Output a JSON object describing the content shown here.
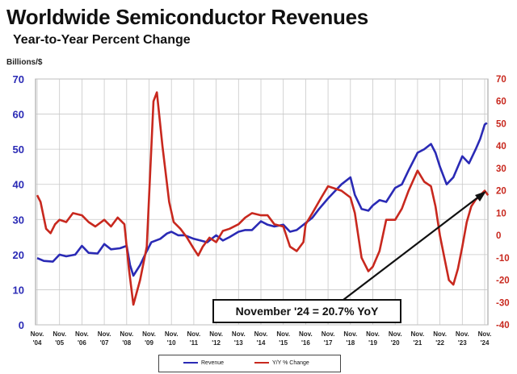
{
  "title": "Worldwide Semiconductor Revenues",
  "subtitle": "Year-to-Year Percent Change",
  "ylabel": "Billions/$",
  "annotation": "November '24 = 20.7% YoY",
  "chart_data": {
    "type": "line",
    "categories": [
      "Nov. '04",
      "Nov. '05",
      "Nov. '06",
      "Nov. '07",
      "Nov. '08",
      "Nov. '09",
      "Nov. '10",
      "Nov. '11",
      "Nov. '12",
      "Nov. '13",
      "Nov. '14",
      "Nov. '15",
      "Nov. '16",
      "Nov. '17",
      "Nov. '18",
      "Nov. '19",
      "Nov. '20",
      "Nov. '21",
      "Nov. '22",
      "Nov. '23",
      "Nov. '24"
    ],
    "y_left_ticks": [
      0,
      10,
      20,
      30,
      40,
      50,
      60,
      70
    ],
    "y_left_lim": [
      0,
      70
    ],
    "y_right_ticks": [
      -40,
      -30,
      -20,
      -10,
      0,
      10,
      20,
      30,
      40,
      50,
      60,
      70
    ],
    "y_right_lim": [
      -40,
      70
    ],
    "grid": true,
    "legend_position": "bottom",
    "series": [
      {
        "name": "Revenue",
        "axis": "left",
        "color": "#2a2ab5",
        "points": [
          [
            0,
            19
          ],
          [
            0.3,
            18.2
          ],
          [
            0.7,
            18
          ],
          [
            1.0,
            20
          ],
          [
            1.3,
            19.5
          ],
          [
            1.7,
            20
          ],
          [
            2.0,
            22.5
          ],
          [
            2.3,
            20.5
          ],
          [
            2.7,
            20.3
          ],
          [
            3.0,
            23
          ],
          [
            3.3,
            21.5
          ],
          [
            3.7,
            21.8
          ],
          [
            4.0,
            22.5
          ],
          [
            4.15,
            17
          ],
          [
            4.3,
            14
          ],
          [
            4.6,
            17
          ],
          [
            4.9,
            21
          ],
          [
            5.1,
            23.5
          ],
          [
            5.5,
            24.5
          ],
          [
            5.8,
            26
          ],
          [
            6.0,
            26.5
          ],
          [
            6.3,
            25.5
          ],
          [
            6.6,
            25.5
          ],
          [
            7.0,
            24.5
          ],
          [
            7.3,
            24
          ],
          [
            7.6,
            23.5
          ],
          [
            8.0,
            25.5
          ],
          [
            8.3,
            24
          ],
          [
            8.6,
            25
          ],
          [
            9.0,
            26.5
          ],
          [
            9.3,
            27
          ],
          [
            9.6,
            27
          ],
          [
            10.0,
            29.5
          ],
          [
            10.3,
            28.5
          ],
          [
            10.6,
            28
          ],
          [
            11.0,
            28.5
          ],
          [
            11.3,
            26.5
          ],
          [
            11.6,
            27
          ],
          [
            12.0,
            29
          ],
          [
            12.3,
            30.5
          ],
          [
            12.6,
            33
          ],
          [
            13.0,
            36
          ],
          [
            13.3,
            38
          ],
          [
            13.6,
            40
          ],
          [
            14.0,
            42
          ],
          [
            14.2,
            37
          ],
          [
            14.5,
            33
          ],
          [
            14.8,
            32.5
          ],
          [
            15.0,
            34
          ],
          [
            15.3,
            35.5
          ],
          [
            15.6,
            35
          ],
          [
            16.0,
            39
          ],
          [
            16.3,
            40
          ],
          [
            16.6,
            44
          ],
          [
            17.0,
            49
          ],
          [
            17.3,
            50
          ],
          [
            17.6,
            51.5
          ],
          [
            17.8,
            49
          ],
          [
            18.0,
            45
          ],
          [
            18.3,
            40
          ],
          [
            18.6,
            42
          ],
          [
            19.0,
            48
          ],
          [
            19.3,
            46
          ],
          [
            19.6,
            50
          ],
          [
            19.8,
            53
          ],
          [
            20.0,
            57
          ],
          [
            20.1,
            57.5
          ]
        ]
      },
      {
        "name": "Y/Y % Change",
        "axis": "right",
        "color": "#c8281e",
        "points": [
          [
            0,
            18
          ],
          [
            0.15,
            15
          ],
          [
            0.4,
            3
          ],
          [
            0.6,
            1
          ],
          [
            0.8,
            5
          ],
          [
            1.0,
            7
          ],
          [
            1.3,
            6
          ],
          [
            1.6,
            10
          ],
          [
            2.0,
            9
          ],
          [
            2.3,
            6
          ],
          [
            2.6,
            4
          ],
          [
            3.0,
            7
          ],
          [
            3.3,
            4
          ],
          [
            3.6,
            8
          ],
          [
            3.9,
            5
          ],
          [
            4.1,
            -15
          ],
          [
            4.3,
            -31
          ],
          [
            4.6,
            -20
          ],
          [
            4.9,
            -5
          ],
          [
            5.05,
            28
          ],
          [
            5.2,
            60
          ],
          [
            5.35,
            64
          ],
          [
            5.6,
            40
          ],
          [
            5.9,
            15
          ],
          [
            6.1,
            6
          ],
          [
            6.4,
            3
          ],
          [
            6.7,
            -1
          ],
          [
            7.0,
            -6
          ],
          [
            7.2,
            -9
          ],
          [
            7.4,
            -5
          ],
          [
            7.7,
            -1
          ],
          [
            8.0,
            -3
          ],
          [
            8.3,
            2
          ],
          [
            8.6,
            3
          ],
          [
            9.0,
            5
          ],
          [
            9.3,
            8
          ],
          [
            9.6,
            10
          ],
          [
            10.0,
            9
          ],
          [
            10.3,
            9
          ],
          [
            10.6,
            5
          ],
          [
            11.0,
            4
          ],
          [
            11.3,
            -5
          ],
          [
            11.6,
            -7
          ],
          [
            11.9,
            -3
          ],
          [
            12.0,
            5
          ],
          [
            12.3,
            10
          ],
          [
            12.7,
            17
          ],
          [
            13.0,
            22
          ],
          [
            13.3,
            21
          ],
          [
            13.6,
            20
          ],
          [
            14.0,
            17
          ],
          [
            14.2,
            10
          ],
          [
            14.5,
            -10
          ],
          [
            14.8,
            -16
          ],
          [
            15.0,
            -14
          ],
          [
            15.3,
            -7
          ],
          [
            15.6,
            7
          ],
          [
            16.0,
            7
          ],
          [
            16.3,
            12
          ],
          [
            16.6,
            20
          ],
          [
            17.0,
            29
          ],
          [
            17.3,
            24
          ],
          [
            17.6,
            22
          ],
          [
            17.8,
            13
          ],
          [
            18.0,
            0
          ],
          [
            18.2,
            -10
          ],
          [
            18.4,
            -20
          ],
          [
            18.6,
            -22
          ],
          [
            18.8,
            -15
          ],
          [
            19.0,
            -5
          ],
          [
            19.2,
            6
          ],
          [
            19.4,
            13
          ],
          [
            19.6,
            16
          ],
          [
            19.8,
            18
          ],
          [
            20.0,
            20
          ],
          [
            20.15,
            18
          ]
        ]
      }
    ]
  },
  "colors": {
    "axis_left": "#2a2ab5",
    "axis_right": "#c8281e",
    "grid": "#c8c8c8"
  }
}
